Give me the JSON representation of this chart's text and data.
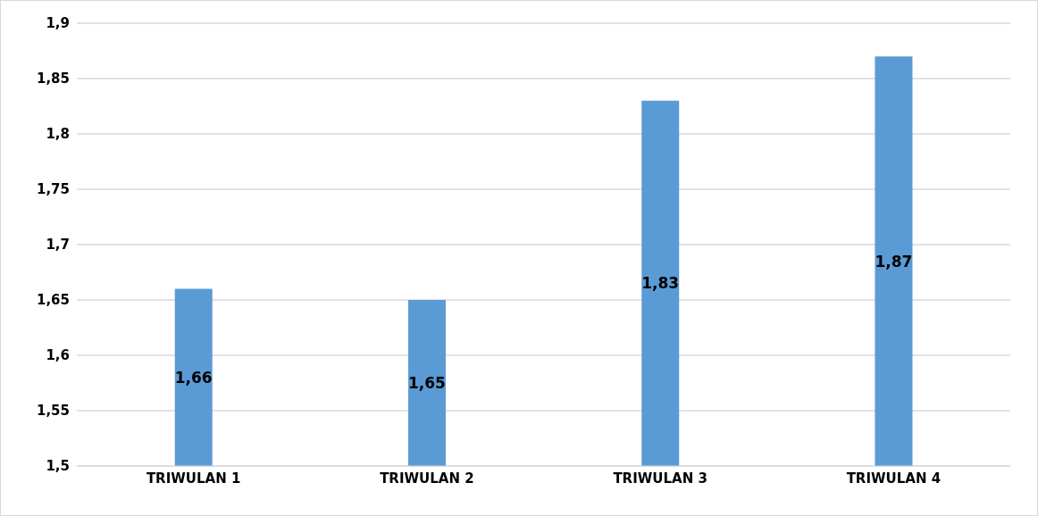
{
  "chart_data": {
    "type": "bar",
    "categories": [
      "TRIWULAN 1",
      "TRIWULAN 2",
      "TRIWULAN 3",
      "TRIWULAN 4"
    ],
    "values": [
      1.66,
      1.65,
      1.83,
      1.87
    ],
    "value_labels": [
      "1,66",
      "1,65",
      "1,83",
      "1,87"
    ],
    "color": "#5b9bd5",
    "ylim": [
      1.5,
      1.9
    ],
    "yticks": [
      {
        "value": 1.5,
        "label": "1,5"
      },
      {
        "value": 1.55,
        "label": "1,55"
      },
      {
        "value": 1.6,
        "label": "1,6"
      },
      {
        "value": 1.65,
        "label": "1,65"
      },
      {
        "value": 1.7,
        "label": "1,7"
      },
      {
        "value": 1.75,
        "label": "1,75"
      },
      {
        "value": 1.8,
        "label": "1,8"
      },
      {
        "value": 1.85,
        "label": "1,85"
      },
      {
        "value": 1.9,
        "label": "1,9"
      }
    ],
    "grid": "y",
    "legend": false
  }
}
